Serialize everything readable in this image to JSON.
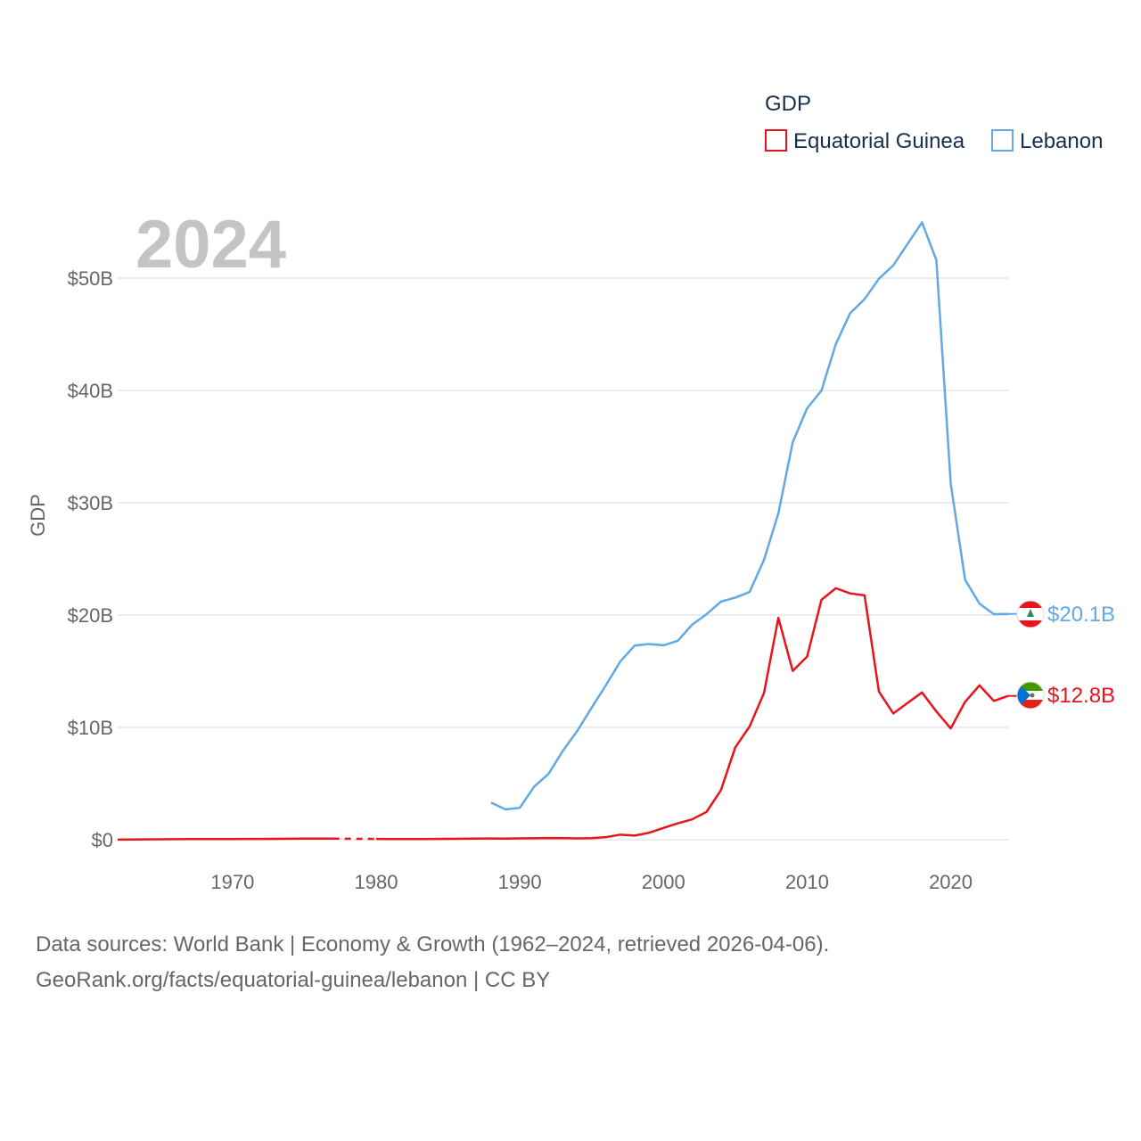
{
  "chart_data": {
    "type": "line",
    "title": "GDP",
    "year_label": "2024",
    "ylabel": "GDP",
    "xlabel": "",
    "xlim": [
      1962,
      2024
    ],
    "ylim": [
      0,
      55000000000
    ],
    "x_ticks": [
      "1970",
      "1980",
      "1990",
      "2000",
      "2010",
      "2020"
    ],
    "y_ticks": [
      {
        "value": 0,
        "label": "$0"
      },
      {
        "value": 10000000000,
        "label": "$10B"
      },
      {
        "value": 20000000000,
        "label": "$20B"
      },
      {
        "value": 30000000000,
        "label": "$30B"
      },
      {
        "value": 40000000000,
        "label": "$40B"
      },
      {
        "value": 50000000000,
        "label": "$50B"
      }
    ],
    "legend": {
      "title": "GDP",
      "position": "top-right"
    },
    "series": [
      {
        "name": "Equatorial Guinea",
        "color": "#e8141c",
        "end_label": "$12.8B",
        "gap": [
          1977,
          1980
        ],
        "x": [
          1962,
          1963,
          1964,
          1965,
          1966,
          1967,
          1968,
          1969,
          1970,
          1971,
          1972,
          1973,
          1974,
          1975,
          1976,
          1977,
          1980,
          1981,
          1982,
          1983,
          1984,
          1985,
          1986,
          1987,
          1988,
          1989,
          1990,
          1991,
          1992,
          1993,
          1994,
          1995,
          1996,
          1997,
          1998,
          1999,
          2000,
          2001,
          2002,
          2003,
          2004,
          2005,
          2006,
          2007,
          2008,
          2009,
          2010,
          2011,
          2012,
          2013,
          2014,
          2015,
          2016,
          2017,
          2018,
          2019,
          2020,
          2021,
          2022,
          2023,
          2024
        ],
        "values": [
          0.01,
          0.02,
          0.03,
          0.04,
          0.05,
          0.06,
          0.06,
          0.06,
          0.06,
          0.07,
          0.07,
          0.08,
          0.09,
          0.1,
          0.1,
          0.1,
          0.07,
          0.06,
          0.06,
          0.06,
          0.07,
          0.08,
          0.09,
          0.1,
          0.11,
          0.1,
          0.12,
          0.13,
          0.15,
          0.14,
          0.12,
          0.14,
          0.23,
          0.45,
          0.37,
          0.62,
          1.05,
          1.46,
          1.81,
          2.48,
          4.41,
          8.22,
          10.09,
          13.07,
          19.75,
          15.03,
          16.3,
          21.36,
          22.39,
          21.93,
          21.76,
          13.19,
          11.24,
          12.18,
          13.11,
          11.42,
          9.91,
          12.27,
          13.74,
          12.36,
          12.8
        ]
      },
      {
        "name": "Lebanon",
        "color": "#62a8e5",
        "end_label": "$20.1B",
        "x": [
          1988,
          1989,
          1990,
          1991,
          1992,
          1993,
          1994,
          1995,
          1996,
          1997,
          1998,
          1999,
          2000,
          2001,
          2002,
          2003,
          2004,
          2005,
          2006,
          2007,
          2008,
          2009,
          2010,
          2011,
          2012,
          2013,
          2014,
          2015,
          2016,
          2017,
          2018,
          2019,
          2020,
          2021,
          2022,
          2023,
          2024
        ],
        "values": [
          3.3,
          2.7,
          2.84,
          4.73,
          5.87,
          7.92,
          9.69,
          11.75,
          13.77,
          15.88,
          17.29,
          17.42,
          17.31,
          17.71,
          19.15,
          20.08,
          21.2,
          21.55,
          22.06,
          24.92,
          29.06,
          35.39,
          38.41,
          39.99,
          44.13,
          46.88,
          48.13,
          49.94,
          51.14,
          53.05,
          54.96,
          51.6,
          31.7,
          23.15,
          21.02,
          20.08,
          20.1
        ]
      }
    ]
  },
  "source_text": {
    "line1": "Data sources: World Bank | Economy & Growth (1962–2024, retrieved 2026-04-06).",
    "line2": "GeoRank.org/facts/equatorial-guinea/lebanon | CC BY"
  }
}
